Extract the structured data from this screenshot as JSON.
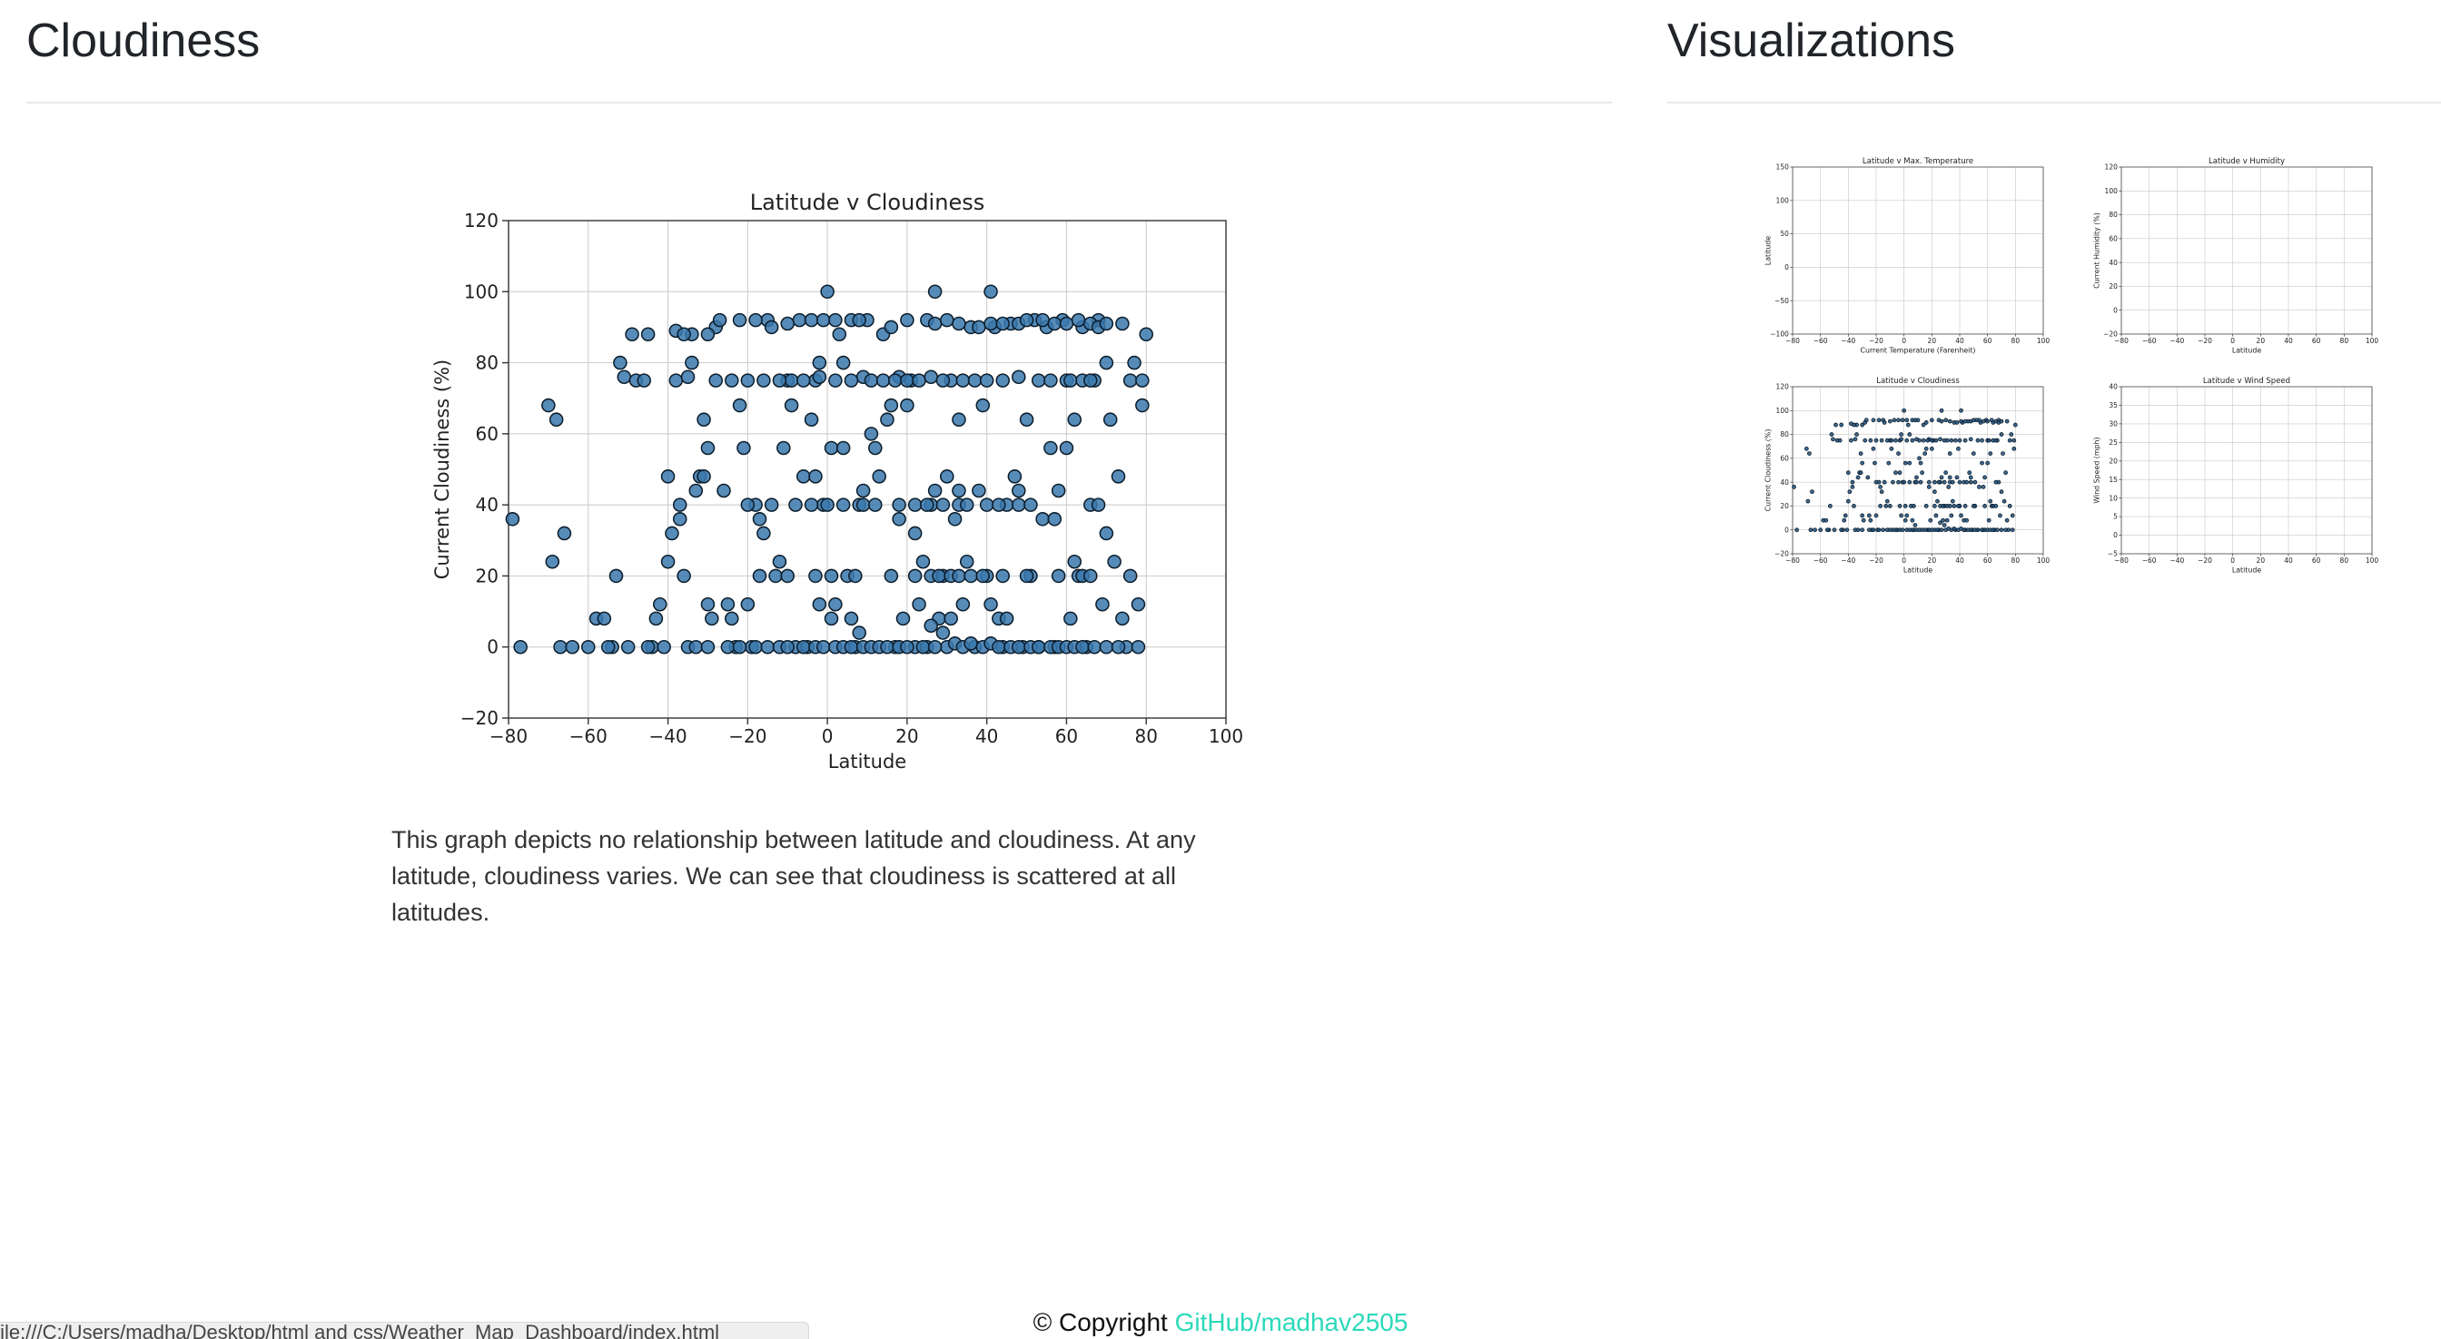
{
  "header": {
    "left_title": "Cloudiness",
    "right_title": "Visualizations"
  },
  "main": {
    "description": "This graph depicts no relationship between latitude and cloudiness. At any latitude, cloudiness varies. We can see that cloudiness is scattered at all latitudes."
  },
  "footer": {
    "copyright": "© Copyright",
    "link_text": "GitHub/madhav2505"
  },
  "status_bar": {
    "url": "file:///C:/Users/madha/Desktop/html and css/Weather_Map_Dashboard/index.html"
  },
  "colors": {
    "marker_fill": "#3a78ad",
    "marker_edge": "#0d1e2c",
    "link": "#2bd9b9",
    "thumb_marker": "#1f4e79"
  },
  "chart_data": [
    {
      "id": "cloudiness-main",
      "type": "scatter",
      "title": "Latitude v Cloudiness",
      "xlabel": "Latitude",
      "ylabel": "Current Cloudiness (%)",
      "xlim": [
        -80,
        100
      ],
      "ylim": [
        -20,
        120
      ],
      "xticks": [
        -80,
        -60,
        -40,
        -20,
        0,
        20,
        40,
        60,
        80,
        100
      ],
      "yticks": [
        -20,
        0,
        20,
        40,
        60,
        80,
        100,
        120
      ],
      "grid": true,
      "points": [
        [
          -79,
          36
        ],
        [
          -77,
          0
        ],
        [
          -70,
          68
        ],
        [
          -69,
          24
        ],
        [
          -68,
          64
        ],
        [
          -67,
          0
        ],
        [
          -66,
          32
        ],
        [
          -64,
          0
        ],
        [
          -60,
          0
        ],
        [
          -58,
          8
        ],
        [
          -56,
          8
        ],
        [
          -54,
          0
        ],
        [
          -53,
          20
        ],
        [
          -52,
          80
        ],
        [
          -51,
          76
        ],
        [
          -50,
          0
        ],
        [
          -49,
          88
        ],
        [
          -48,
          75
        ],
        [
          -46,
          75
        ],
        [
          -45,
          88
        ],
        [
          -44,
          0
        ],
        [
          -43,
          8
        ],
        [
          -42,
          12
        ],
        [
          -41,
          0
        ],
        [
          -40,
          48
        ],
        [
          -40,
          24
        ],
        [
          -39,
          32
        ],
        [
          -38,
          75
        ],
        [
          -37,
          40
        ],
        [
          -37,
          36
        ],
        [
          -36,
          20
        ],
        [
          -35,
          76
        ],
        [
          -34,
          88
        ],
        [
          -34,
          80
        ],
        [
          -33,
          44
        ],
        [
          -32,
          48
        ],
        [
          -31,
          64
        ],
        [
          -31,
          48
        ],
        [
          -30,
          56
        ],
        [
          -30,
          12
        ],
        [
          -29,
          8
        ],
        [
          -28,
          90
        ],
        [
          -27,
          92
        ],
        [
          -26,
          44
        ],
        [
          -25,
          12
        ],
        [
          -24,
          8
        ],
        [
          -23,
          0
        ],
        [
          -22,
          68
        ],
        [
          -21,
          56
        ],
        [
          -20,
          12
        ],
        [
          -19,
          0
        ],
        [
          -18,
          40
        ],
        [
          -17,
          36
        ],
        [
          -16,
          32
        ],
        [
          -15,
          92
        ],
        [
          -14,
          90
        ],
        [
          -13,
          20
        ],
        [
          -12,
          24
        ],
        [
          -11,
          56
        ],
        [
          -10,
          75
        ],
        [
          -9,
          75
        ],
        [
          -8,
          0
        ],
        [
          -7,
          92
        ],
        [
          -6,
          48
        ],
        [
          -5,
          0
        ],
        [
          -4,
          64
        ],
        [
          -3,
          75
        ],
        [
          -2,
          80
        ],
        [
          -1,
          40
        ],
        [
          0,
          100
        ],
        [
          1,
          8
        ],
        [
          2,
          12
        ],
        [
          3,
          88
        ],
        [
          4,
          80
        ],
        [
          5,
          20
        ],
        [
          6,
          92
        ],
        [
          7,
          0
        ],
        [
          8,
          40
        ],
        [
          9,
          76
        ],
        [
          10,
          92
        ],
        [
          11,
          60
        ],
        [
          12,
          56
        ],
        [
          13,
          48
        ],
        [
          14,
          88
        ],
        [
          15,
          64
        ],
        [
          16,
          90
        ],
        [
          17,
          0
        ],
        [
          18,
          76
        ],
        [
          19,
          8
        ],
        [
          20,
          92
        ],
        [
          21,
          75
        ],
        [
          22,
          0
        ],
        [
          23,
          12
        ],
        [
          24,
          24
        ],
        [
          25,
          0
        ],
        [
          26,
          40
        ],
        [
          27,
          100
        ],
        [
          28,
          8
        ],
        [
          29,
          20
        ],
        [
          30,
          0
        ],
        [
          31,
          75
        ],
        [
          32,
          36
        ],
        [
          33,
          64
        ],
        [
          34,
          12
        ],
        [
          35,
          24
        ],
        [
          36,
          90
        ],
        [
          37,
          0
        ],
        [
          38,
          44
        ],
        [
          39,
          68
        ],
        [
          40,
          20
        ],
        [
          41,
          100
        ],
        [
          42,
          90
        ],
        [
          43,
          8
        ],
        [
          44,
          0
        ],
        [
          45,
          40
        ],
        [
          46,
          91
        ],
        [
          47,
          48
        ],
        [
          48,
          76
        ],
        [
          49,
          0
        ],
        [
          50,
          64
        ],
        [
          51,
          20
        ],
        [
          52,
          92
        ],
        [
          53,
          0
        ],
        [
          54,
          36
        ],
        [
          55,
          90
        ],
        [
          56,
          56
        ],
        [
          57,
          0
        ],
        [
          58,
          44
        ],
        [
          59,
          92
        ],
        [
          60,
          75
        ],
        [
          61,
          8
        ],
        [
          62,
          64
        ],
        [
          63,
          20
        ],
        [
          64,
          90
        ],
        [
          65,
          0
        ],
        [
          66,
          40
        ],
        [
          67,
          75
        ],
        [
          68,
          92
        ],
        [
          69,
          12
        ],
        [
          70,
          80
        ],
        [
          71,
          64
        ],
        [
          72,
          24
        ],
        [
          73,
          48
        ],
        [
          74,
          91
        ],
        [
          75,
          0
        ],
        [
          76,
          20
        ],
        [
          77,
          80
        ],
        [
          78,
          12
        ],
        [
          79,
          68
        ],
        [
          80,
          88
        ],
        [
          -55,
          0
        ],
        [
          -45,
          0
        ],
        [
          -35,
          0
        ],
        [
          -33,
          0
        ],
        [
          -30,
          0
        ],
        [
          -25,
          0
        ],
        [
          -22,
          0
        ],
        [
          -18,
          0
        ],
        [
          -15,
          0
        ],
        [
          -12,
          0
        ],
        [
          -10,
          0
        ],
        [
          -6,
          0
        ],
        [
          -3,
          0
        ],
        [
          -1,
          0
        ],
        [
          2,
          0
        ],
        [
          4,
          0
        ],
        [
          6,
          0
        ],
        [
          9,
          0
        ],
        [
          11,
          0
        ],
        [
          13,
          0
        ],
        [
          15,
          0
        ],
        [
          18,
          0
        ],
        [
          20,
          0
        ],
        [
          24,
          0
        ],
        [
          27,
          0
        ],
        [
          32,
          1
        ],
        [
          34,
          0
        ],
        [
          36,
          1
        ],
        [
          39,
          0
        ],
        [
          41,
          1
        ],
        [
          43,
          0
        ],
        [
          46,
          0
        ],
        [
          48,
          0
        ],
        [
          51,
          0
        ],
        [
          53,
          0
        ],
        [
          56,
          0
        ],
        [
          58,
          0
        ],
        [
          60,
          0
        ],
        [
          62,
          0
        ],
        [
          64,
          0
        ],
        [
          67,
          0
        ],
        [
          70,
          0
        ],
        [
          73,
          0
        ],
        [
          78,
          0
        ],
        [
          -28,
          75
        ],
        [
          -24,
          75
        ],
        [
          -20,
          75
        ],
        [
          -16,
          75
        ],
        [
          -12,
          75
        ],
        [
          -6,
          75
        ],
        [
          -2,
          76
        ],
        [
          2,
          75
        ],
        [
          6,
          75
        ],
        [
          11,
          75
        ],
        [
          14,
          75
        ],
        [
          17,
          75
        ],
        [
          20,
          75
        ],
        [
          23,
          75
        ],
        [
          26,
          76
        ],
        [
          29,
          75
        ],
        [
          34,
          75
        ],
        [
          37,
          75
        ],
        [
          40,
          75
        ],
        [
          44,
          75
        ],
        [
          53,
          75
        ],
        [
          56,
          75
        ],
        [
          61,
          75
        ],
        [
          64,
          75
        ],
        [
          66,
          75
        ],
        [
          76,
          75
        ],
        [
          79,
          75
        ],
        [
          -20,
          40
        ],
        [
          -14,
          40
        ],
        [
          -8,
          40
        ],
        [
          -4,
          40
        ],
        [
          0,
          40
        ],
        [
          4,
          40
        ],
        [
          9,
          40
        ],
        [
          12,
          40
        ],
        [
          18,
          40
        ],
        [
          22,
          40
        ],
        [
          25,
          40
        ],
        [
          29,
          40
        ],
        [
          33,
          40
        ],
        [
          40,
          40
        ],
        [
          43,
          40
        ],
        [
          48,
          40
        ],
        [
          51,
          40
        ],
        [
          -17,
          20
        ],
        [
          -10,
          20
        ],
        [
          -3,
          20
        ],
        [
          1,
          20
        ],
        [
          7,
          20
        ],
        [
          16,
          20
        ],
        [
          22,
          20
        ],
        [
          26,
          20
        ],
        [
          28,
          20
        ],
        [
          31,
          20
        ],
        [
          33,
          20
        ],
        [
          36,
          20
        ],
        [
          39,
          20
        ],
        [
          44,
          20
        ],
        [
          50,
          20
        ],
        [
          58,
          20
        ],
        [
          64,
          20
        ],
        [
          66,
          20
        ],
        [
          -22,
          92
        ],
        [
          -18,
          92
        ],
        [
          -10,
          91
        ],
        [
          -4,
          92
        ],
        [
          -1,
          92
        ],
        [
          2,
          92
        ],
        [
          8,
          92
        ],
        [
          25,
          92
        ],
        [
          27,
          91
        ],
        [
          30,
          92
        ],
        [
          33,
          91
        ],
        [
          38,
          90
        ],
        [
          41,
          91
        ],
        [
          44,
          91
        ],
        [
          48,
          91
        ],
        [
          50,
          92
        ],
        [
          54,
          92
        ],
        [
          57,
          91
        ],
        [
          60,
          91
        ],
        [
          63,
          92
        ],
        [
          66,
          91
        ],
        [
          68,
          90
        ],
        [
          70,
          91
        ],
        [
          -38,
          89
        ],
        [
          -36,
          88
        ],
        [
          -30,
          88
        ],
        [
          16,
          68
        ],
        [
          20,
          68
        ],
        [
          -9,
          68
        ],
        [
          1,
          56
        ],
        [
          4,
          56
        ],
        [
          9,
          44
        ],
        [
          18,
          36
        ],
        [
          22,
          32
        ],
        [
          27,
          44
        ],
        [
          30,
          48
        ],
        [
          -3,
          48
        ],
        [
          -2,
          12
        ],
        [
          6,
          8
        ],
        [
          8,
          4
        ],
        [
          26,
          6
        ],
        [
          29,
          4
        ],
        [
          31,
          8
        ],
        [
          33,
          44
        ],
        [
          35,
          40
        ],
        [
          41,
          12
        ],
        [
          45,
          8
        ],
        [
          48,
          44
        ],
        [
          57,
          36
        ],
        [
          60,
          56
        ],
        [
          62,
          24
        ],
        [
          68,
          40
        ],
        [
          70,
          32
        ],
        [
          74,
          8
        ]
      ]
    },
    {
      "id": "thumb-temperature",
      "type": "scatter",
      "title": "Latitude v Max. Temperature",
      "xlabel": "Current Temperature (Farenheit)",
      "ylabel": "Latitude",
      "xlim": [
        -80,
        100
      ],
      "ylim": [
        -100,
        150
      ],
      "xticks": [
        -80,
        -60,
        -40,
        -20,
        0,
        20,
        40,
        60,
        80,
        100
      ],
      "yticks": [
        -100,
        -50,
        0,
        50,
        100,
        150
      ]
    },
    {
      "id": "thumb-humidity",
      "type": "scatter",
      "title": "Latitude v Humidity",
      "xlabel": "Latitude",
      "ylabel": "Current Humidity (%)",
      "xlim": [
        -80,
        100
      ],
      "ylim": [
        -20,
        120
      ],
      "xticks": [
        -80,
        -60,
        -40,
        -20,
        0,
        20,
        40,
        60,
        80,
        100
      ],
      "yticks": [
        -20,
        0,
        20,
        40,
        60,
        80,
        100,
        120
      ]
    },
    {
      "id": "thumb-cloudiness",
      "type": "scatter",
      "title": "Latitude v Cloudiness",
      "xlabel": "Latitude",
      "ylabel": "Current Cloudiness (%)",
      "xlim": [
        -80,
        100
      ],
      "ylim": [
        -20,
        120
      ],
      "xticks": [
        -80,
        -60,
        -40,
        -20,
        0,
        20,
        40,
        60,
        80,
        100
      ],
      "yticks": [
        -20,
        0,
        20,
        40,
        60,
        80,
        100,
        120
      ]
    },
    {
      "id": "thumb-wind",
      "type": "scatter",
      "title": "Latitude v Wind Speed",
      "xlabel": "Latitude",
      "ylabel": "Wind Speed (mph)",
      "xlim": [
        -80,
        100
      ],
      "ylim": [
        -5,
        40
      ],
      "xticks": [
        -80,
        -60,
        -40,
        -20,
        0,
        20,
        40,
        60,
        80,
        100
      ],
      "yticks": [
        -5,
        0,
        5,
        10,
        15,
        20,
        25,
        30,
        35,
        40
      ]
    }
  ]
}
